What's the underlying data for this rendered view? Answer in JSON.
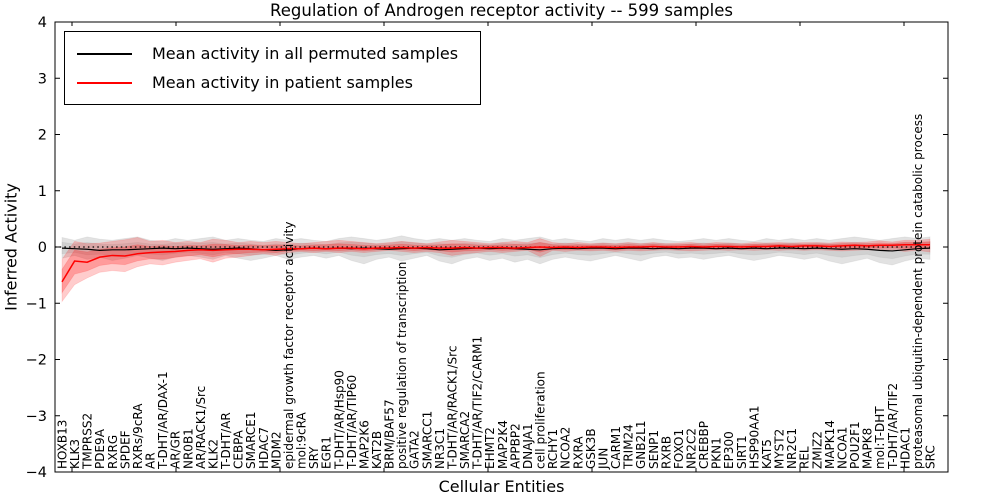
{
  "chart_data": {
    "type": "line",
    "title": "Regulation of Androgen receptor activity -- 599 samples",
    "xlabel": "Cellular Entities",
    "ylabel": "Inferred Activity",
    "ylim": [
      -4,
      4
    ],
    "yticks": [
      -4,
      -3,
      -2,
      -1,
      0,
      1,
      2,
      3,
      4
    ],
    "grid": false,
    "legend_position": "upper left",
    "zero_line": {
      "y": 0,
      "style": "dotted",
      "color": "#000000"
    },
    "categories": [
      "HOXB13",
      "KLK3",
      "TMPRSS2",
      "PDE9A",
      "RXRG",
      "SPDEF",
      "RXRs/9cRA",
      "AR",
      "T-DHT/AR/DAX-1",
      "AR/GR",
      "NR0B1",
      "AR/RACK1/Src",
      "KLK2",
      "T-DHT/AR",
      "CEBPA",
      "SMARCE1",
      "HDAC7",
      "MDM2",
      "epidermal growth factor receptor activity",
      "mol:9cRA",
      "SRY",
      "EGR1",
      "T-DHT/AR/Hsp90",
      "T-DHT/AR/TIP60",
      "MAP2K6",
      "KAT2B",
      "BRM/BAF57",
      "positive regulation of transcription",
      "GATA2",
      "SMARCC1",
      "NR3C1",
      "T-DHT/AR/RACK1/Src",
      "SMARCA2",
      "T-DHT/AR/TIF2/CARM1",
      "EHMT2",
      "MAP2K4",
      "APPBP2",
      "DNAJA1",
      "cell proliferation",
      "RCHY1",
      "NCOA2",
      "RXRA",
      "GSK3B",
      "JUN",
      "CARM1",
      "TRIM24",
      "GNB2L1",
      "SENP1",
      "RXRB",
      "FOXO1",
      "NR2C2",
      "CREBBP",
      "PKN1",
      "EP300",
      "SIRT1",
      "HSP90AA1",
      "KAT5",
      "MYST2",
      "NR2C1",
      "REL",
      "ZMIZ2",
      "MAPK14",
      "NCOA1",
      "POU2F1",
      "MAPK8",
      "mol:T-DHT",
      "T-DHT/AR/TIF2",
      "HDAC1",
      "proteasomal ubiquitin-dependent protein catabolic process",
      "SRC"
    ],
    "series": [
      {
        "name": "Mean activity in all permuted samples",
        "color": "#000000",
        "values": [
          -0.02,
          -0.03,
          -0.04,
          -0.06,
          -0.05,
          -0.05,
          -0.04,
          -0.03,
          -0.02,
          -0.03,
          -0.02,
          -0.03,
          -0.04,
          -0.03,
          -0.02,
          -0.03,
          -0.05,
          -0.06,
          -0.05,
          -0.03,
          -0.02,
          -0.03,
          -0.02,
          -0.03,
          -0.02,
          -0.03,
          -0.04,
          -0.03,
          -0.02,
          -0.03,
          -0.05,
          -0.04,
          -0.03,
          -0.02,
          -0.03,
          -0.02,
          -0.03,
          -0.04,
          -0.05,
          -0.03,
          -0.02,
          -0.03,
          -0.02,
          -0.02,
          -0.03,
          -0.02,
          -0.02,
          -0.03,
          -0.02,
          -0.03,
          -0.02,
          -0.02,
          -0.03,
          -0.02,
          -0.03,
          -0.02,
          -0.03,
          -0.02,
          -0.02,
          -0.03,
          -0.02,
          -0.03,
          -0.04,
          -0.03,
          -0.04,
          -0.06,
          -0.07,
          -0.05,
          -0.03,
          -0.02
        ]
      },
      {
        "name": "Mean activity in patient samples",
        "color": "#ff0000",
        "values": [
          -0.62,
          -0.25,
          -0.27,
          -0.18,
          -0.15,
          -0.16,
          -0.12,
          -0.1,
          -0.09,
          -0.08,
          -0.06,
          -0.05,
          -0.06,
          -0.05,
          -0.04,
          -0.04,
          -0.05,
          -0.04,
          -0.03,
          -0.03,
          -0.02,
          -0.03,
          -0.02,
          -0.02,
          -0.03,
          -0.02,
          -0.02,
          -0.01,
          -0.02,
          -0.01,
          -0.02,
          -0.02,
          -0.01,
          -0.02,
          -0.01,
          -0.01,
          -0.02,
          -0.01,
          0.0,
          -0.01,
          0.0,
          -0.01,
          0.0,
          0.0,
          -0.01,
          0.0,
          0.0,
          0.01,
          0.0,
          0.0,
          0.01,
          0.0,
          0.01,
          0.01,
          0.0,
          0.01,
          0.01,
          0.02,
          0.01,
          0.02,
          0.02,
          0.01,
          0.02,
          0.03,
          0.02,
          0.03,
          0.03,
          0.04,
          0.04,
          0.04
        ]
      }
    ],
    "bands": [
      {
        "name": "permuted samples spread",
        "color": "#a0a0a0",
        "lower": [
          -0.2,
          -0.15,
          -0.22,
          -0.18,
          -0.24,
          -0.2,
          -0.15,
          -0.2,
          -0.24,
          -0.18,
          -0.15,
          -0.18,
          -0.22,
          -0.15,
          -0.2,
          -0.24,
          -0.2,
          -0.15,
          -0.22,
          -0.18,
          -0.15,
          -0.2,
          -0.15,
          -0.24,
          -0.3,
          -0.22,
          -0.18,
          -0.25,
          -0.2,
          -0.15,
          -0.25,
          -0.3,
          -0.22,
          -0.18,
          -0.24,
          -0.2,
          -0.27,
          -0.22,
          -0.3,
          -0.22,
          -0.18,
          -0.22,
          -0.25,
          -0.2,
          -0.15,
          -0.2,
          -0.25,
          -0.18,
          -0.15,
          -0.2,
          -0.18,
          -0.22,
          -0.18,
          -0.15,
          -0.2,
          -0.24,
          -0.2,
          -0.15,
          -0.18,
          -0.22,
          -0.18,
          -0.25,
          -0.3,
          -0.25,
          -0.2,
          -0.28,
          -0.32,
          -0.25,
          -0.2,
          -0.22
        ],
        "upper": [
          0.17,
          0.12,
          0.18,
          0.14,
          0.12,
          0.15,
          0.18,
          0.12,
          0.1,
          0.15,
          0.12,
          0.15,
          0.18,
          0.12,
          0.15,
          0.12,
          0.1,
          0.15,
          0.12,
          0.15,
          0.12,
          0.1,
          0.15,
          0.18,
          0.15,
          0.12,
          0.15,
          0.2,
          0.15,
          0.12,
          0.15,
          0.12,
          0.15,
          0.12,
          0.1,
          0.15,
          0.12,
          0.15,
          0.18,
          0.12,
          0.15,
          0.12,
          0.1,
          0.15,
          0.12,
          0.15,
          0.12,
          0.15,
          0.12,
          0.1,
          0.12,
          0.15,
          0.12,
          0.15,
          0.12,
          0.1,
          0.15,
          0.12,
          0.15,
          0.12,
          0.15,
          0.12,
          0.15,
          0.18,
          0.15,
          0.12,
          0.15,
          0.18,
          0.15,
          0.18
        ]
      },
      {
        "name": "patient samples spread",
        "color": "#ff0000",
        "lower": [
          -0.97,
          -0.67,
          -0.55,
          -0.45,
          -0.42,
          -0.44,
          -0.35,
          -0.3,
          -0.32,
          -0.27,
          -0.24,
          -0.21,
          -0.27,
          -0.2,
          -0.18,
          -0.15,
          -0.12,
          -0.15,
          -0.1,
          -0.08,
          -0.1,
          -0.08,
          -0.1,
          -0.08,
          -0.1,
          -0.08,
          -0.06,
          -0.08,
          -0.1,
          -0.08,
          -0.1,
          -0.15,
          -0.12,
          -0.1,
          -0.08,
          -0.1,
          -0.08,
          -0.06,
          -0.17,
          -0.06,
          -0.08,
          -0.06,
          -0.07,
          -0.06,
          -0.08,
          -0.06,
          -0.07,
          -0.06,
          -0.05,
          -0.06,
          -0.07,
          -0.06,
          -0.05,
          -0.06,
          -0.05,
          -0.06,
          -0.05,
          -0.06,
          -0.05,
          -0.06,
          -0.05,
          -0.06,
          -0.07,
          -0.06,
          -0.05,
          -0.06,
          -0.05,
          -0.08,
          -0.06,
          -0.09
        ],
        "upper": [
          -0.22,
          0.1,
          0.06,
          0.07,
          0.1,
          0.13,
          0.17,
          0.1,
          0.12,
          0.08,
          0.1,
          0.08,
          0.14,
          0.12,
          0.08,
          0.1,
          0.08,
          0.1,
          0.08,
          0.06,
          0.08,
          0.1,
          0.12,
          0.1,
          0.08,
          0.06,
          0.08,
          0.1,
          0.08,
          0.06,
          0.09,
          0.12,
          0.1,
          0.08,
          0.06,
          0.08,
          0.1,
          0.08,
          0.15,
          0.08,
          0.06,
          0.08,
          0.06,
          0.07,
          0.06,
          0.08,
          0.06,
          0.08,
          0.06,
          0.07,
          0.08,
          0.06,
          0.08,
          0.07,
          0.06,
          0.08,
          0.07,
          0.08,
          0.07,
          0.08,
          0.08,
          0.07,
          0.09,
          0.08,
          0.09,
          0.11,
          0.09,
          0.12,
          0.12,
          0.14
        ]
      }
    ]
  }
}
